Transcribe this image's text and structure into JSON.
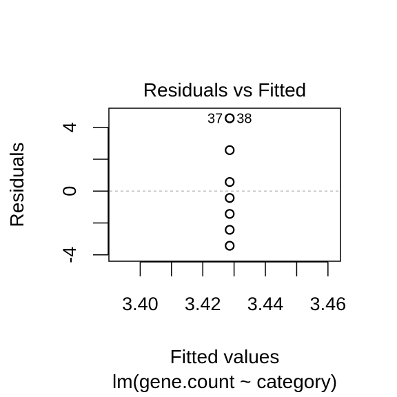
{
  "chart_data": {
    "type": "scatter",
    "title": "Residuals vs Fitted",
    "xlabel": "Fitted values",
    "sublabel": "lm(gene.count ~ category)",
    "ylabel": "Residuals",
    "xlim": [
      3.39,
      3.464
    ],
    "ylim": [
      -4.4,
      5.2
    ],
    "x_ticks": [
      3.4,
      3.41,
      3.42,
      3.43,
      3.44,
      3.45,
      3.46
    ],
    "x_tick_labels": [
      {
        "value": 3.4,
        "label": "3.40"
      },
      {
        "value": 3.42,
        "label": "3.42"
      },
      {
        "value": 3.44,
        "label": "3.44"
      },
      {
        "value": 3.46,
        "label": "3.46"
      }
    ],
    "y_ticks": [
      -4,
      -2,
      0,
      2,
      4
    ],
    "y_tick_labels": [
      {
        "value": -4,
        "label": "-4"
      },
      {
        "value": 0,
        "label": "0"
      },
      {
        "value": 4,
        "label": "4"
      }
    ],
    "reference_line": {
      "y": 0,
      "style": "dashed",
      "color": "#bebebe"
    },
    "points": [
      {
        "x": 3.4286,
        "y": 4.57
      },
      {
        "x": 3.4286,
        "y": 4.57
      },
      {
        "x": 3.4286,
        "y": 2.57
      },
      {
        "x": 3.4286,
        "y": 0.57
      },
      {
        "x": 3.4286,
        "y": -0.43
      },
      {
        "x": 3.4286,
        "y": -1.43
      },
      {
        "x": 3.4286,
        "y": -2.43
      },
      {
        "x": 3.4286,
        "y": -3.43
      }
    ],
    "point_labels": [
      {
        "text": "37",
        "x": 3.4286,
        "y": 4.57,
        "side": "left"
      },
      {
        "text": "38",
        "x": 3.4286,
        "y": 4.57,
        "side": "right"
      }
    ],
    "grid": false,
    "legend": "none"
  }
}
